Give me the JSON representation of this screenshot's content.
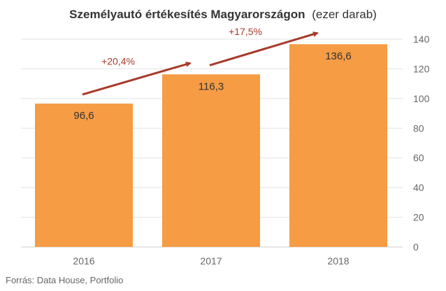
{
  "chart_data": {
    "type": "bar",
    "title": "Személyautó értékesítés Magyarországon",
    "subtitle": "(ezer darab)",
    "categories": [
      "2016",
      "2017",
      "2018"
    ],
    "values": [
      96.6,
      116.3,
      136.6
    ],
    "value_labels": [
      "96,6",
      "116,3",
      "136,6"
    ],
    "ylim": [
      0,
      140
    ],
    "y_ticks": [
      0,
      20,
      40,
      60,
      80,
      100,
      120,
      140
    ],
    "y_axis_position": "right",
    "xlabel": "",
    "ylabel": "",
    "grid": true,
    "annotations": [
      {
        "text": "+20,4%",
        "from_category": "2016",
        "to_category": "2017"
      },
      {
        "text": "+17,5%",
        "from_category": "2017",
        "to_category": "2018"
      }
    ]
  },
  "colors": {
    "bar": "#f59c44",
    "arrow": "#a83a2a",
    "grid": "#e3e3e3",
    "text": "#333333",
    "axis_text": "#666666"
  },
  "source": "Forrás: Data House, Portfolio"
}
